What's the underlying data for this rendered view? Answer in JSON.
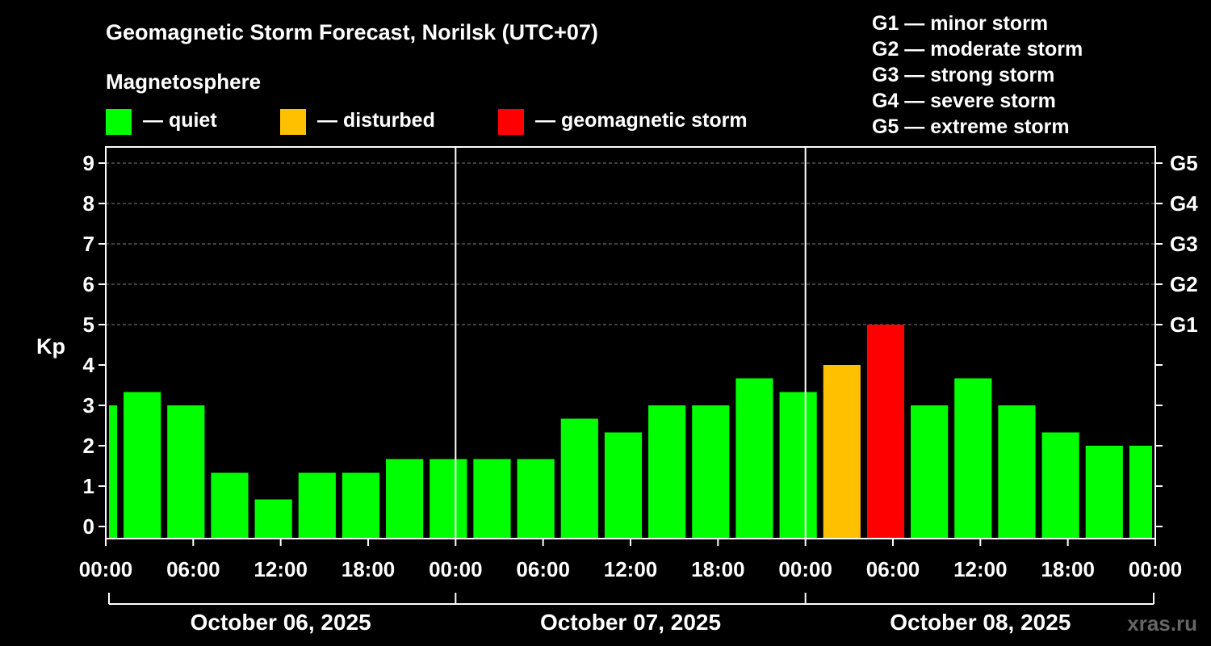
{
  "chart_data": {
    "type": "bar",
    "title": "Geomagnetic Storm Forecast, Norilsk (UTC+07)",
    "subtitle": "Magnetosphere",
    "ylabel": "Kp",
    "ylim": [
      -0.3,
      9.4
    ],
    "yticks": [
      "0",
      "1",
      "2",
      "3",
      "4",
      "5",
      "6",
      "7",
      "8",
      "9"
    ],
    "right_ticks": [
      {
        "kp": 5,
        "label": "G1"
      },
      {
        "kp": 6,
        "label": "G2"
      },
      {
        "kp": 7,
        "label": "G3"
      },
      {
        "kp": 8,
        "label": "G4"
      },
      {
        "kp": 9,
        "label": "G5"
      }
    ],
    "x_hours_range": [
      0,
      72
    ],
    "xticks": [
      "00:00",
      "06:00",
      "12:00",
      "18:00",
      "00:00",
      "06:00",
      "12:00",
      "18:00",
      "00:00",
      "06:00",
      "12:00",
      "18:00",
      "00:00"
    ],
    "dates": [
      "October 06, 2025",
      "October 07, 2025",
      "October 08, 2025"
    ],
    "legend": [
      {
        "label": "— quiet",
        "color": "#00ff00"
      },
      {
        "label": "— disturbed",
        "color": "#ffc000"
      },
      {
        "label": "— geomagnetic storm",
        "color": "#ff0000"
      }
    ],
    "g_legend": [
      "G1 — minor storm",
      "G2 — moderate storm",
      "G3 — strong storm",
      "G4 — severe storm",
      "G5 — extreme storm"
    ],
    "bars": [
      {
        "start": 0,
        "end": 1,
        "kp": 3.0,
        "level": "quiet"
      },
      {
        "start": 1,
        "end": 4,
        "kp": 3.33,
        "level": "quiet"
      },
      {
        "start": 4,
        "end": 7,
        "kp": 3.0,
        "level": "quiet"
      },
      {
        "start": 7,
        "end": 10,
        "kp": 1.33,
        "level": "quiet"
      },
      {
        "start": 10,
        "end": 13,
        "kp": 0.67,
        "level": "quiet"
      },
      {
        "start": 13,
        "end": 16,
        "kp": 1.33,
        "level": "quiet"
      },
      {
        "start": 16,
        "end": 19,
        "kp": 1.33,
        "level": "quiet"
      },
      {
        "start": 19,
        "end": 22,
        "kp": 1.67,
        "level": "quiet"
      },
      {
        "start": 22,
        "end": 25,
        "kp": 1.67,
        "level": "quiet"
      },
      {
        "start": 25,
        "end": 28,
        "kp": 1.67,
        "level": "quiet"
      },
      {
        "start": 28,
        "end": 31,
        "kp": 1.67,
        "level": "quiet"
      },
      {
        "start": 31,
        "end": 34,
        "kp": 2.67,
        "level": "quiet"
      },
      {
        "start": 34,
        "end": 37,
        "kp": 2.33,
        "level": "quiet"
      },
      {
        "start": 37,
        "end": 40,
        "kp": 3.0,
        "level": "quiet"
      },
      {
        "start": 40,
        "end": 43,
        "kp": 3.0,
        "level": "quiet"
      },
      {
        "start": 43,
        "end": 46,
        "kp": 3.67,
        "level": "quiet"
      },
      {
        "start": 46,
        "end": 49,
        "kp": 3.33,
        "level": "quiet"
      },
      {
        "start": 49,
        "end": 52,
        "kp": 4.0,
        "level": "disturbed"
      },
      {
        "start": 52,
        "end": 55,
        "kp": 5.0,
        "level": "storm"
      },
      {
        "start": 55,
        "end": 58,
        "kp": 3.0,
        "level": "quiet"
      },
      {
        "start": 58,
        "end": 61,
        "kp": 3.67,
        "level": "quiet"
      },
      {
        "start": 61,
        "end": 64,
        "kp": 3.0,
        "level": "quiet"
      },
      {
        "start": 64,
        "end": 67,
        "kp": 2.33,
        "level": "quiet"
      },
      {
        "start": 67,
        "end": 70,
        "kp": 2.0,
        "level": "quiet"
      },
      {
        "start": 70,
        "end": 72,
        "kp": 2.0,
        "level": "quiet"
      }
    ],
    "colors": {
      "quiet": "#00ff00",
      "disturbed": "#ffc000",
      "storm": "#ff0000",
      "grid": "#808080",
      "axis": "#ffffff"
    }
  },
  "brand": "xras.ru"
}
